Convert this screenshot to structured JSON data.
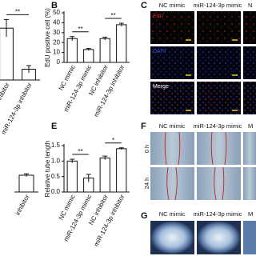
{
  "chart_data": [
    {
      "type": "bar",
      "categories": [
        "inhibitor",
        "miR-124-3p inhibitor"
      ],
      "values": [
        0.72,
        0.15
      ],
      "errors": [
        0.12,
        0.05
      ],
      "ylim": [
        0,
        1
      ],
      "annotations": [
        "**"
      ],
      "color": "#ffffff"
    },
    {
      "type": "bar",
      "panel": "B",
      "ylabel": "EdU positive cell (%)",
      "categories": [
        "NC mimic",
        "miR-124-3p mimic",
        "NC inhibitor",
        "miR-124-3p inhibitor"
      ],
      "values": [
        24,
        13,
        24,
        38
      ],
      "errors": [
        2,
        1,
        1.5,
        1.5
      ],
      "ylim": [
        0,
        50
      ],
      "yticks": [
        0,
        10,
        20,
        30,
        40,
        50
      ],
      "annotations": [
        "**",
        "**"
      ],
      "color": "#ffffff"
    },
    {
      "type": "bar",
      "categories": [
        "inhibitor"
      ],
      "values": [
        0.35
      ],
      "errors": [
        0.03
      ],
      "ylim": [
        0,
        1
      ],
      "color": "#ffffff"
    },
    {
      "type": "bar",
      "panel": "E",
      "ylabel": "Relative tube length",
      "categories": [
        "NC mimic",
        "miR-124-3p mimic",
        "NC inhibitor",
        "miR-124-3p inhibitor"
      ],
      "values": [
        1.0,
        0.45,
        1.1,
        1.4
      ],
      "errors": [
        0.06,
        0.12,
        0.06,
        0.03
      ],
      "ylim": [
        0,
        1.5
      ],
      "yticks": [
        {
          "value": 0,
          "label": "0.0"
        },
        {
          "value": 0.5,
          "label": "0.5"
        },
        {
          "value": 1,
          "label": "1.0"
        },
        {
          "value": 1.5,
          "label": "1.5"
        }
      ],
      "annotations": [
        "**",
        "*"
      ],
      "color": "#ffffff"
    }
  ],
  "panel_c": {
    "label": "C",
    "columns": [
      "NC mimic",
      "miR-124-3p mimic",
      "N"
    ],
    "rows": [
      "EdU",
      "DAPI",
      "Merge"
    ]
  },
  "panel_f": {
    "label": "F",
    "columns": [
      "NC mimic",
      "miR-124-3p mimic",
      "M"
    ],
    "rows": [
      "0 h",
      "24 h"
    ]
  },
  "panel_g": {
    "label": "G",
    "columns": [
      "NC mimic",
      "miR-124-3p mimic",
      "M"
    ]
  }
}
